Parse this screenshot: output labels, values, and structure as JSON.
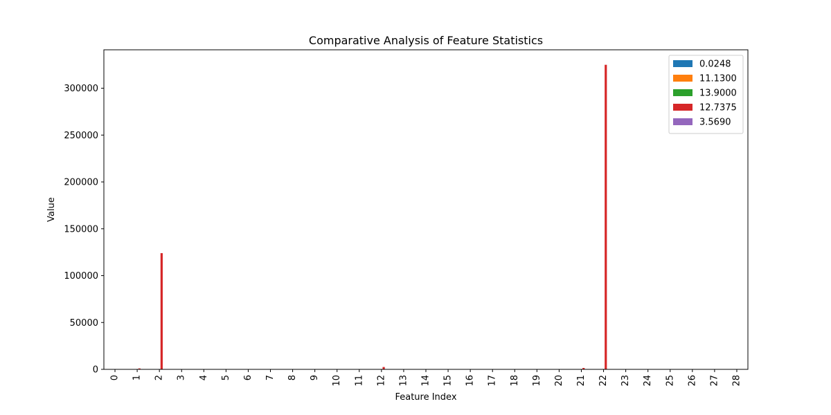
{
  "chart_data": {
    "type": "bar",
    "title": "Comparative Analysis of Feature Statistics",
    "xlabel": "Feature Index",
    "ylabel": "Value",
    "categories": [
      "0",
      "1",
      "2",
      "3",
      "4",
      "5",
      "6",
      "7",
      "8",
      "9",
      "10",
      "11",
      "12",
      "13",
      "14",
      "15",
      "16",
      "17",
      "18",
      "19",
      "20",
      "21",
      "22",
      "23",
      "24",
      "25",
      "26",
      "27",
      "28"
    ],
    "ylim": [
      0,
      341000
    ],
    "yticks": [
      0,
      50000,
      100000,
      150000,
      200000,
      250000,
      300000
    ],
    "ytick_labels": [
      "0",
      "50000",
      "100000",
      "150000",
      "200000",
      "250000",
      "300000"
    ],
    "legend_position": "top-right",
    "grid": false,
    "series": [
      {
        "name": "0.0248",
        "color": "#1f77b4",
        "values": [
          0.02,
          0.5,
          0.5,
          0.02,
          0.02,
          0.02,
          0.02,
          0.02,
          0.02,
          0.02,
          0.02,
          0.02,
          0.5,
          0.02,
          0.02,
          0.02,
          0.02,
          0.02,
          0.02,
          0.02,
          0.02,
          0.5,
          0.5,
          0.02,
          0.02,
          0.02,
          0.02,
          0.02,
          0.02
        ]
      },
      {
        "name": "11.1300",
        "color": "#ff7f0e",
        "values": [
          11,
          60,
          150,
          11,
          11,
          11,
          11,
          11,
          11,
          11,
          11,
          11,
          200,
          11,
          11,
          11,
          11,
          11,
          11,
          11,
          11,
          150,
          300,
          11,
          11,
          11,
          11,
          11,
          11
        ]
      },
      {
        "name": "13.9000",
        "color": "#2ca02c",
        "values": [
          14,
          80,
          200,
          14,
          14,
          14,
          14,
          14,
          14,
          14,
          14,
          14,
          250,
          14,
          14,
          14,
          14,
          14,
          14,
          14,
          14,
          200,
          400,
          14,
          14,
          14,
          14,
          14,
          14
        ]
      },
      {
        "name": "12.7375",
        "color": "#d62728",
        "values": [
          13,
          1000,
          124000,
          13,
          13,
          13,
          13,
          13,
          13,
          13,
          13,
          13,
          2500,
          13,
          13,
          13,
          13,
          13,
          13,
          13,
          13,
          1500,
          325000,
          13,
          13,
          13,
          13,
          13,
          13
        ]
      },
      {
        "name": "3.5690",
        "color": "#9467bd",
        "values": [
          3.6,
          30,
          80,
          3.6,
          3.6,
          3.6,
          3.6,
          3.6,
          3.6,
          3.6,
          3.6,
          3.6,
          100,
          3.6,
          3.6,
          3.6,
          3.6,
          3.6,
          3.6,
          3.6,
          3.6,
          80,
          200,
          3.6,
          3.6,
          3.6,
          3.6,
          3.6,
          3.6
        ]
      }
    ]
  }
}
